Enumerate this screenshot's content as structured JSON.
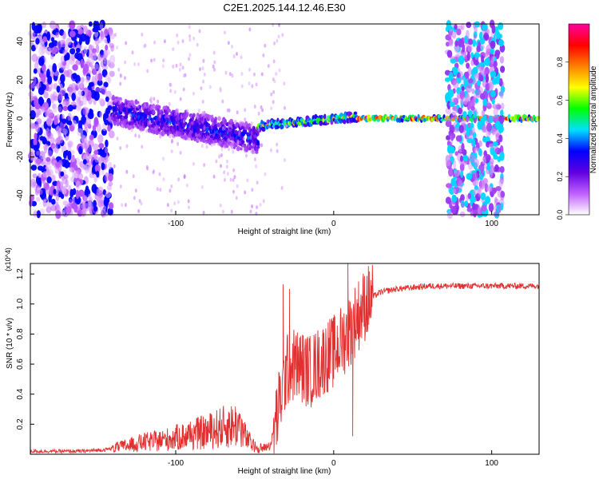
{
  "figure_title": "C2E1.2025.144.12.46.E30",
  "chart_data": [
    {
      "type": "heatmap",
      "xlabel": "Height of straight line (km)",
      "ylabel": "Frequency (Hz)",
      "xlim": [
        -192,
        130
      ],
      "ylim": [
        -50,
        49
      ],
      "x_ticks": [
        -100,
        0,
        100
      ],
      "y_ticks": [
        -40,
        -20,
        0,
        20,
        40
      ],
      "grid": false,
      "colorbar": {
        "label": "Normalized spectral amplitude",
        "range": [
          0,
          1
        ],
        "ticks": [
          0.0,
          0.2,
          0.4,
          0.6,
          0.8
        ],
        "colormap": [
          "#ffffff",
          "#c060ff",
          "#6000e0",
          "#0000ff",
          "#00e0ff",
          "#00ff00",
          "#ffff00",
          "#ff8000",
          "#ff0000",
          "#ff00a0"
        ]
      },
      "regions": [
        {
          "description_x": [
            -192,
            -140
          ],
          "freq_range": [
            -50,
            49
          ],
          "amplitude": 0.15,
          "kind": "broadband noise"
        },
        {
          "description_x": [
            -140,
            -48
          ],
          "freq_center_start": 4,
          "freq_center_end": -11,
          "freq_halfwidth": 7,
          "amplitude": 0.35,
          "kind": "signal band"
        },
        {
          "description_x": [
            -48,
            15
          ],
          "freq_center_start": -4,
          "freq_center_end": 1,
          "freq_halfwidth": 2,
          "amplitude": 0.7,
          "kind": "converging tone"
        },
        {
          "description_x": [
            15,
            130
          ],
          "freq_center": 0,
          "freq_halfwidth": 1,
          "amplitude": 1.0,
          "kind": "carrier tone"
        },
        {
          "description_x": [
            72,
            107
          ],
          "freq_range": [
            -50,
            49
          ],
          "amplitude": 0.2,
          "kind": "broadband noise burst"
        }
      ]
    },
    {
      "type": "line",
      "xlabel": "Height of straight line (km)",
      "ylabel": "SNR (10 * v/v)",
      "y_scale_note": "(x10^4)",
      "xlim": [
        -192,
        130
      ],
      "ylim": [
        0,
        1.27
      ],
      "x_ticks": [
        -100,
        0,
        100
      ],
      "y_ticks": [
        0.2,
        0.4,
        0.6,
        0.8,
        1.0,
        1.2
      ],
      "grid": false,
      "series": [
        {
          "color": "#e03030",
          "x": [
            -192,
            -160,
            -145,
            -130,
            -120,
            -110,
            -100,
            -90,
            -80,
            -70,
            -60,
            -55,
            -50,
            -45,
            -40,
            -35,
            -30,
            -25,
            -20,
            -15,
            -10,
            -5,
            0,
            5,
            10,
            15,
            20,
            25,
            30,
            40,
            50,
            60,
            80,
            100,
            115,
            130
          ],
          "y": [
            0.02,
            0.02,
            0.03,
            0.06,
            0.08,
            0.09,
            0.11,
            0.13,
            0.15,
            0.18,
            0.2,
            0.1,
            0.05,
            0.04,
            0.06,
            0.3,
            0.55,
            0.6,
            0.58,
            0.55,
            0.6,
            0.65,
            0.68,
            0.75,
            0.82,
            0.92,
            1.0,
            1.05,
            1.08,
            1.1,
            1.11,
            1.12,
            1.12,
            1.12,
            1.12,
            1.12
          ]
        }
      ],
      "spikes": [
        {
          "x": -32,
          "y": 1.13
        },
        {
          "x": -28,
          "y": 1.1
        },
        {
          "x": 9,
          "y": 1.27
        },
        {
          "x": 12,
          "y": 0.12
        },
        {
          "x": 22,
          "y": 1.17
        }
      ]
    }
  ]
}
